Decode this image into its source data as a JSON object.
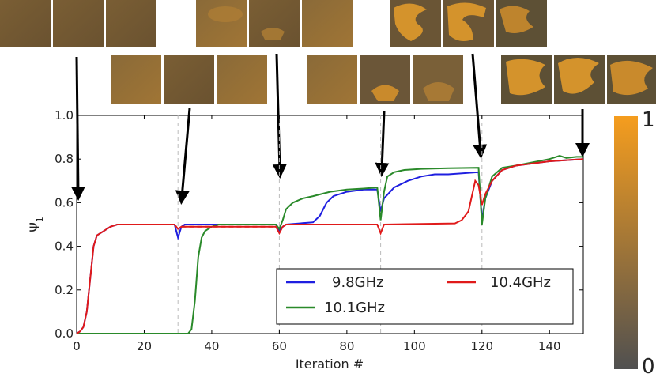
{
  "chart_data": {
    "type": "line",
    "title": "",
    "xlabel": "Iteration #",
    "ylabel": "Ψ",
    "ylabel_subscript": "1",
    "xlim": [
      0,
      150
    ],
    "ylim": [
      0,
      1.0
    ],
    "x_ticks": [
      "0",
      "20",
      "40",
      "60",
      "80",
      "100",
      "120",
      "140"
    ],
    "y_ticks": [
      "0.0",
      "0.2",
      "0.4",
      "0.6",
      "0.8",
      "1.0"
    ],
    "legend_position": "bottom-right",
    "series": [
      {
        "name": "9.8GHz",
        "color": "#1f1fe0",
        "points": [
          [
            0,
            0
          ],
          [
            1,
            0.01
          ],
          [
            2,
            0.03
          ],
          [
            3,
            0.1
          ],
          [
            4,
            0.25
          ],
          [
            5,
            0.4
          ],
          [
            6,
            0.45
          ],
          [
            8,
            0.47
          ],
          [
            10,
            0.49
          ],
          [
            12,
            0.5
          ],
          [
            29,
            0.5
          ],
          [
            30,
            0.44
          ],
          [
            31,
            0.49
          ],
          [
            32,
            0.5
          ],
          [
            59,
            0.5
          ],
          [
            60,
            0.47
          ],
          [
            61,
            0.49
          ],
          [
            62,
            0.5
          ],
          [
            70,
            0.51
          ],
          [
            72,
            0.54
          ],
          [
            74,
            0.6
          ],
          [
            76,
            0.63
          ],
          [
            80,
            0.65
          ],
          [
            85,
            0.66
          ],
          [
            89,
            0.66
          ],
          [
            90,
            0.56
          ],
          [
            91,
            0.62
          ],
          [
            94,
            0.67
          ],
          [
            98,
            0.7
          ],
          [
            102,
            0.72
          ],
          [
            106,
            0.73
          ],
          [
            110,
            0.73
          ],
          [
            119,
            0.74
          ],
          [
            120,
            0.52
          ],
          [
            121,
            0.62
          ],
          [
            123,
            0.7
          ],
          [
            126,
            0.75
          ],
          [
            130,
            0.77
          ],
          [
            135,
            0.78
          ],
          [
            140,
            0.79
          ],
          [
            150,
            0.8
          ]
        ],
        "dashed_segments": [
          [
            12,
            29,
            0.5
          ]
        ]
      },
      {
        "name": "10.1GHz",
        "color": "#2a8a2a",
        "points": [
          [
            0,
            0
          ],
          [
            33,
            0
          ],
          [
            34,
            0.02
          ],
          [
            35,
            0.15
          ],
          [
            36,
            0.35
          ],
          [
            37,
            0.44
          ],
          [
            38,
            0.47
          ],
          [
            40,
            0.49
          ],
          [
            42,
            0.5
          ],
          [
            59,
            0.5
          ],
          [
            60,
            0.48
          ],
          [
            61,
            0.52
          ],
          [
            62,
            0.57
          ],
          [
            64,
            0.6
          ],
          [
            67,
            0.62
          ],
          [
            70,
            0.63
          ],
          [
            75,
            0.65
          ],
          [
            80,
            0.66
          ],
          [
            85,
            0.665
          ],
          [
            89,
            0.67
          ],
          [
            90,
            0.52
          ],
          [
            91,
            0.65
          ],
          [
            92,
            0.72
          ],
          [
            94,
            0.74
          ],
          [
            97,
            0.75
          ],
          [
            102,
            0.755
          ],
          [
            110,
            0.758
          ],
          [
            119,
            0.76
          ],
          [
            120,
            0.5
          ],
          [
            121,
            0.62
          ],
          [
            123,
            0.72
          ],
          [
            126,
            0.76
          ],
          [
            130,
            0.77
          ],
          [
            135,
            0.785
          ],
          [
            140,
            0.8
          ],
          [
            143,
            0.815
          ],
          [
            145,
            0.805
          ],
          [
            148,
            0.81
          ],
          [
            150,
            0.81
          ]
        ],
        "dashed_segments": [
          [
            0,
            33,
            0.0
          ]
        ]
      },
      {
        "name": "10.4GHz",
        "color": "#e01a1a",
        "points": [
          [
            0,
            0
          ],
          [
            1,
            0.01
          ],
          [
            2,
            0.03
          ],
          [
            3,
            0.1
          ],
          [
            4,
            0.25
          ],
          [
            5,
            0.4
          ],
          [
            6,
            0.45
          ],
          [
            8,
            0.47
          ],
          [
            10,
            0.49
          ],
          [
            12,
            0.5
          ],
          [
            29,
            0.5
          ],
          [
            30,
            0.48
          ],
          [
            31,
            0.49
          ],
          [
            59,
            0.49
          ],
          [
            60,
            0.46
          ],
          [
            61,
            0.49
          ],
          [
            62,
            0.5
          ],
          [
            89,
            0.5
          ],
          [
            90,
            0.46
          ],
          [
            91,
            0.5
          ],
          [
            112,
            0.505
          ],
          [
            114,
            0.52
          ],
          [
            116,
            0.56
          ],
          [
            118,
            0.7
          ],
          [
            119,
            0.68
          ],
          [
            120,
            0.59
          ],
          [
            121,
            0.64
          ],
          [
            123,
            0.7
          ],
          [
            126,
            0.75
          ],
          [
            130,
            0.77
          ],
          [
            135,
            0.78
          ],
          [
            140,
            0.79
          ],
          [
            150,
            0.8
          ]
        ],
        "dashed_segments": [
          [
            31,
            59,
            0.49
          ]
        ]
      }
    ],
    "event_markers_x": [
      0,
      30,
      60,
      90,
      120,
      150
    ],
    "colorbar": {
      "min_label": "0",
      "max_label": "1",
      "low_color": "#505050",
      "high_color": "#f59d1e"
    }
  }
}
